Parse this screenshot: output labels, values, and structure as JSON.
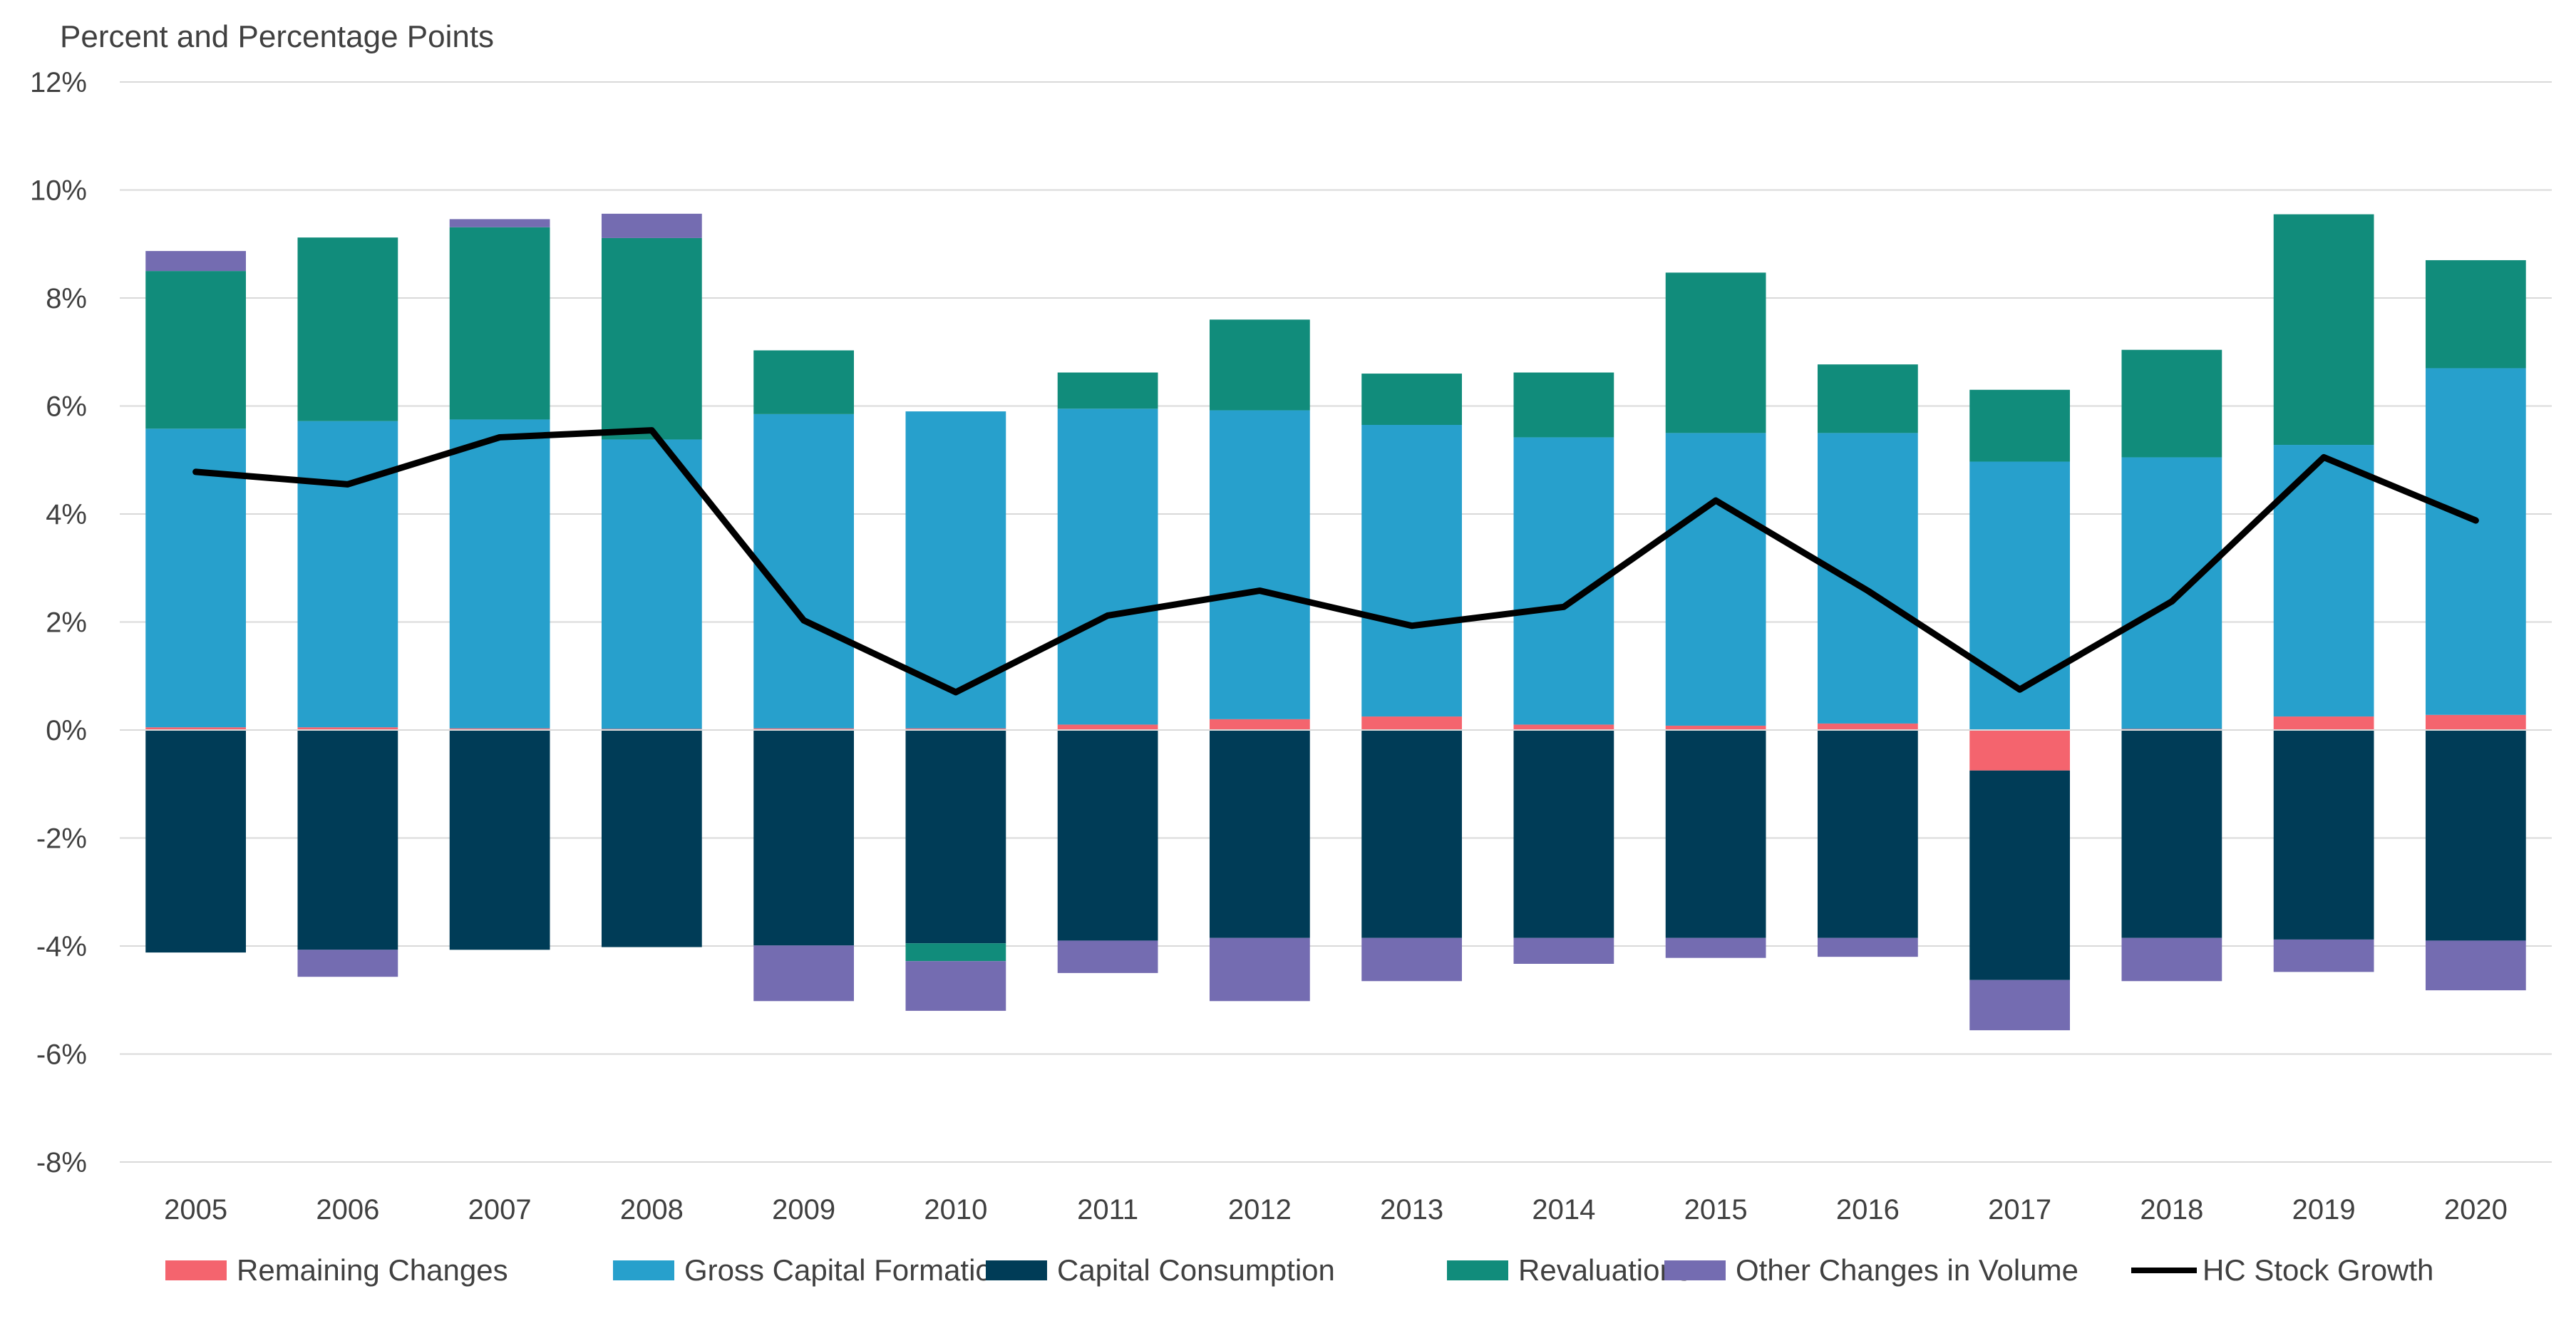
{
  "chart_data": {
    "type": "bar",
    "stacked": true,
    "unit_label": "Percent and Percentage Points",
    "categories": [
      "2005",
      "2006",
      "2007",
      "2008",
      "2009",
      "2010",
      "2011",
      "2012",
      "2013",
      "2014",
      "2015",
      "2016",
      "2017",
      "2018",
      "2019",
      "2020"
    ],
    "ylim": [
      -8,
      12
    ],
    "yticks": [
      -8,
      -6,
      -4,
      -2,
      0,
      2,
      4,
      6,
      8,
      10,
      12
    ],
    "ytick_labels": [
      "-8%",
      "-6%",
      "-4%",
      "-2%",
      "0%",
      "2%",
      "4%",
      "6%",
      "8%",
      "10%",
      "12%"
    ],
    "grid": true,
    "legend_position": "bottom",
    "series": [
      {
        "name": "Remaining Changes",
        "kind": "bar",
        "color": "#F4646E",
        "values": [
          0.05,
          0.05,
          0.03,
          0.02,
          0.03,
          0.03,
          0.1,
          0.2,
          0.25,
          0.1,
          0.08,
          0.12,
          -0.75,
          0.02,
          0.25,
          0.28
        ]
      },
      {
        "name": "Gross Capital Formation",
        "kind": "bar",
        "color": "#27A0CC",
        "values": [
          5.53,
          5.67,
          5.72,
          5.36,
          5.82,
          5.87,
          5.85,
          5.72,
          5.4,
          5.32,
          5.42,
          5.38,
          4.97,
          5.03,
          5.03,
          6.42
        ]
      },
      {
        "name": "Capital Consumption",
        "kind": "bar",
        "color": "#003C57",
        "values": [
          -4.12,
          -4.07,
          -4.07,
          -4.02,
          -3.99,
          -3.95,
          -3.9,
          -3.85,
          -3.85,
          -3.85,
          -3.85,
          -3.85,
          -3.88,
          -3.85,
          -3.88,
          -3.9
        ]
      },
      {
        "name": "Revaluations",
        "kind": "bar",
        "color": "#118C7B",
        "values": [
          2.92,
          3.4,
          3.56,
          3.73,
          1.18,
          -0.33,
          0.67,
          1.68,
          0.95,
          1.2,
          2.97,
          1.27,
          1.33,
          1.99,
          4.27,
          2.0
        ]
      },
      {
        "name": "Other Changes in Volume",
        "kind": "bar",
        "color": "#746CB1",
        "values": [
          0.37,
          -0.5,
          0.15,
          0.45,
          -1.03,
          -0.92,
          -0.6,
          -1.17,
          -0.8,
          -0.48,
          -0.37,
          -0.35,
          -0.93,
          -0.8,
          -0.6,
          -0.92
        ]
      },
      {
        "name": "HC Stock Growth",
        "kind": "line",
        "color": "#000000",
        "values": [
          4.78,
          4.55,
          5.42,
          5.55,
          2.03,
          0.7,
          2.12,
          2.58,
          1.93,
          2.28,
          4.25,
          2.58,
          0.75,
          2.38,
          5.05,
          3.88
        ]
      }
    ]
  }
}
